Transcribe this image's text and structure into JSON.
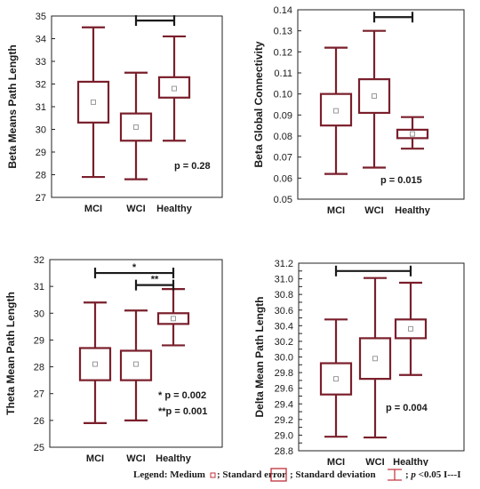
{
  "style": {
    "box_color": "#7a1f2b",
    "bracket_color": "#1a1a1a",
    "median_marker_color": "#9a9a9a"
  },
  "chart_data": [
    {
      "type": "box",
      "ylabel": "Beta Means Path Length",
      "ylim": [
        27,
        35
      ],
      "yticks": [
        27,
        28,
        29,
        30,
        31,
        32,
        33,
        34,
        35
      ],
      "categories": [
        "MCI",
        "WCI",
        "Healthy"
      ],
      "boxes": [
        {
          "category": "MCI",
          "median": 31.2,
          "se_low": 30.3,
          "se_high": 32.1,
          "sd_low": 27.9,
          "sd_high": 34.5
        },
        {
          "category": "WCI",
          "median": 30.1,
          "se_low": 29.5,
          "se_high": 30.7,
          "sd_low": 27.8,
          "sd_high": 32.5
        },
        {
          "category": "Healthy",
          "median": 31.8,
          "se_low": 31.4,
          "se_high": 32.3,
          "sd_low": 29.5,
          "sd_high": 34.1
        }
      ],
      "brackets": [
        {
          "from": "WCI",
          "to": "Healthy",
          "y": 34.8,
          "label": ""
        }
      ],
      "annotations": [
        "p = 0.28"
      ]
    },
    {
      "type": "box",
      "ylabel": "Beta Global Connectivity",
      "ylim": [
        0.05,
        0.14
      ],
      "yticks": [
        0.05,
        0.06,
        0.07,
        0.08,
        0.09,
        0.1,
        0.11,
        0.12,
        0.13,
        0.14
      ],
      "ytick_labels": [
        "0.05",
        "0.06",
        "0.07",
        "0.08",
        "0.09",
        "0.10",
        "0.11",
        "0.12",
        "0.13",
        "0.14"
      ],
      "categories": [
        "MCI",
        "WCI",
        "Healthy"
      ],
      "boxes": [
        {
          "category": "MCI",
          "median": 0.092,
          "se_low": 0.085,
          "se_high": 0.1,
          "sd_low": 0.062,
          "sd_high": 0.122
        },
        {
          "category": "WCI",
          "median": 0.099,
          "se_low": 0.091,
          "se_high": 0.107,
          "sd_low": 0.065,
          "sd_high": 0.13
        },
        {
          "category": "Healthy",
          "median": 0.081,
          "se_low": 0.079,
          "se_high": 0.083,
          "sd_low": 0.074,
          "sd_high": 0.089
        }
      ],
      "brackets": [
        {
          "from": "WCI",
          "to": "Healthy",
          "y": 0.1365,
          "label": ""
        }
      ],
      "annotations": [
        "p = 0.015"
      ]
    },
    {
      "type": "box",
      "ylabel": "Theta Mean Path Length",
      "ylim": [
        25,
        32
      ],
      "yticks": [
        25,
        26,
        27,
        28,
        29,
        30,
        31,
        32
      ],
      "categories": [
        "MCI",
        "WCI",
        "Healthy"
      ],
      "boxes": [
        {
          "category": "MCI",
          "median": 28.1,
          "se_low": 27.5,
          "se_high": 28.7,
          "sd_low": 25.9,
          "sd_high": 30.4
        },
        {
          "category": "WCI",
          "median": 28.1,
          "se_low": 27.5,
          "se_high": 28.6,
          "sd_low": 26.0,
          "sd_high": 30.1
        },
        {
          "category": "Healthy",
          "median": 29.8,
          "se_low": 29.6,
          "se_high": 30.0,
          "sd_low": 28.8,
          "sd_high": 30.9
        }
      ],
      "brackets": [
        {
          "from": "MCI",
          "to": "Healthy",
          "y": 31.5,
          "label": "*"
        },
        {
          "from": "WCI",
          "to": "Healthy",
          "y": 31.05,
          "label": "**"
        }
      ],
      "annotations": [
        "* p = 0.002",
        "**p = 0.001"
      ]
    },
    {
      "type": "box",
      "ylabel": "Delta Mean Path Length",
      "ylim": [
        28.8,
        31.2
      ],
      "yticks": [
        28.8,
        28.9,
        29.0,
        29.1,
        29.2,
        29.3,
        29.4,
        29.5,
        29.6,
        29.7,
        29.8,
        29.9,
        30.0,
        30.1,
        30.2,
        30.3,
        30.4,
        30.5,
        30.6,
        30.7,
        30.8,
        30.9,
        31.0,
        31.1,
        31.2
      ],
      "ytick_labels": [
        "28.8",
        "",
        "29.0",
        "",
        "29.2",
        "",
        "29.4",
        "",
        "29.6",
        "",
        "29.8",
        "",
        "30.0",
        "",
        "30.2",
        "",
        "30.4",
        "",
        "30.6",
        "",
        "30.8",
        "",
        "31.0",
        "",
        "31.2"
      ],
      "categories": [
        "MCI",
        "WCI",
        "Healthy"
      ],
      "boxes": [
        {
          "category": "MCI",
          "median": 29.72,
          "se_low": 29.52,
          "se_high": 29.92,
          "sd_low": 28.98,
          "sd_high": 30.48
        },
        {
          "category": "WCI",
          "median": 29.98,
          "se_low": 29.72,
          "se_high": 30.24,
          "sd_low": 28.97,
          "sd_high": 31.01
        },
        {
          "category": "Healthy",
          "median": 30.36,
          "se_low": 30.24,
          "se_high": 30.48,
          "sd_low": 29.77,
          "sd_high": 30.95
        }
      ],
      "brackets": [
        {
          "from": "MCI",
          "to": "Healthy",
          "y": 31.1,
          "label": ""
        }
      ],
      "annotations": [
        "p = 0.004"
      ]
    }
  ],
  "legend": {
    "part1": "Legend: Medium",
    "part2": "; Standard error",
    "part3": "; Standard deviation",
    "part4_p": "p",
    "part4_rest": " <0.05 I---I",
    "part4_prefix": "; "
  }
}
